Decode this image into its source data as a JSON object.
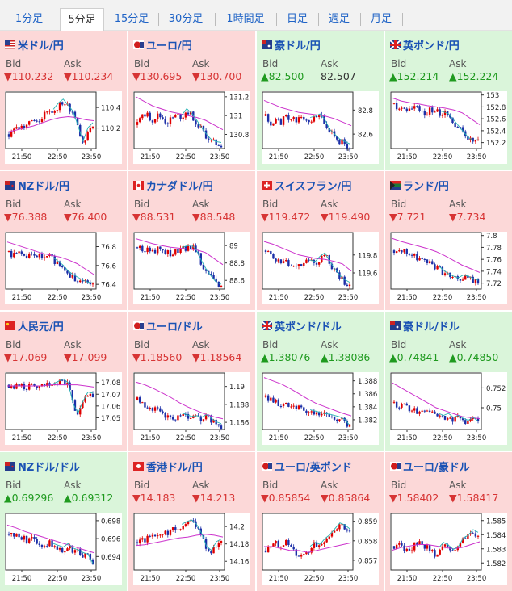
{
  "tabs": [
    {
      "label": "1分足",
      "selected": false
    },
    {
      "label": "5分足",
      "selected": true
    },
    {
      "label": "15分足",
      "selected": false
    },
    {
      "label": "30分足",
      "selected": false
    },
    {
      "label": "1時間足",
      "selected": false
    },
    {
      "label": "日足",
      "selected": false
    },
    {
      "label": "週足",
      "selected": false
    },
    {
      "label": "月足",
      "selected": false
    }
  ],
  "labels": {
    "bid": "Bid",
    "ask": "Ask"
  },
  "colors": {
    "down_bg": "#fcd8d8",
    "up_bg": "#daf5da",
    "candle_up": "#e00000",
    "candle_down": "#1c2fa8",
    "ma_line": "#cc33cc",
    "ma2_line": "#25b3b3"
  },
  "cells": [
    {
      "pair": "米ドル/円",
      "flag": "us",
      "dir": "down",
      "bid": "▼110.232",
      "ask": "▼110.234",
      "ask_dir": "down",
      "chart_data": {
        "type": "candlestick",
        "x_ticks": [
          "21:50",
          "22:50",
          "23:50"
        ],
        "y_ticks": [
          "110.4",
          "110.2"
        ],
        "ylim": [
          110.0,
          110.55
        ],
        "series_close": [
          110.14,
          110.18,
          110.2,
          110.22,
          110.24,
          110.28,
          110.26,
          110.32,
          110.38,
          110.36,
          110.42,
          110.46,
          110.4,
          110.34,
          110.2,
          110.05,
          110.18,
          110.23
        ],
        "trend": [
          110.16,
          110.18,
          110.2,
          110.22,
          110.25,
          110.28,
          110.3,
          110.31,
          110.3,
          110.28,
          110.27
        ]
      }
    },
    {
      "pair": "ユーロ/円",
      "flag": "eu",
      "dir": "down",
      "bid": "▼130.695",
      "ask": "▼130.700",
      "ask_dir": "down",
      "chart_data": {
        "type": "candlestick",
        "x_ticks": [
          "21:50",
          "22:50",
          "23:50"
        ],
        "y_ticks": [
          "131.2",
          "131",
          "130.8"
        ],
        "ylim": [
          130.65,
          131.25
        ],
        "series_close": [
          130.9,
          131.05,
          131.0,
          130.95,
          131.0,
          130.98,
          130.92,
          130.97,
          131.0,
          130.98,
          131.05,
          131.0,
          130.93,
          130.85,
          130.78,
          130.72,
          130.7,
          130.69
        ],
        "trend": [
          131.2,
          131.15,
          131.1,
          131.07,
          131.04,
          131.02,
          131.0,
          130.98,
          130.95,
          130.9,
          130.85
        ]
      }
    },
    {
      "pair": "豪ドル/円",
      "flag": "au",
      "dir": "up",
      "bid": "▲82.500",
      "ask": "82.507",
      "ask_dir": "none",
      "chart_data": {
        "type": "candlestick",
        "x_ticks": [
          "21:50",
          "22:50",
          "23:50"
        ],
        "y_ticks": [
          "82.8",
          "82.6"
        ],
        "ylim": [
          82.48,
          82.95
        ],
        "series_close": [
          82.75,
          82.68,
          82.72,
          82.7,
          82.74,
          82.73,
          82.71,
          82.76,
          82.74,
          82.72,
          82.73,
          82.75,
          82.7,
          82.62,
          82.58,
          82.54,
          82.52,
          82.5
        ],
        "trend": [
          82.88,
          82.85,
          82.82,
          82.8,
          82.78,
          82.77,
          82.76,
          82.75,
          82.73,
          82.7,
          82.67
        ]
      }
    },
    {
      "pair": "英ポンド/円",
      "flag": "gb",
      "dir": "up",
      "bid": "▲152.214",
      "ask": "▲152.224",
      "ask_dir": "up",
      "chart_data": {
        "type": "candlestick",
        "x_ticks": [
          "21:50",
          "22:50",
          "23:50"
        ],
        "y_ticks": [
          "153",
          "152.8",
          "152.6",
          "152.4",
          "152.2"
        ],
        "ylim": [
          152.1,
          153.05
        ],
        "series_close": [
          152.85,
          152.75,
          152.8,
          152.72,
          152.78,
          152.75,
          152.7,
          152.74,
          152.72,
          152.7,
          152.68,
          152.65,
          152.55,
          152.45,
          152.35,
          152.25,
          152.2,
          152.21
        ],
        "trend": [
          152.95,
          152.9,
          152.87,
          152.85,
          152.82,
          152.8,
          152.78,
          152.75,
          152.7,
          152.6,
          152.5
        ]
      }
    },
    {
      "pair": "NZドル/円",
      "flag": "nz",
      "dir": "down",
      "bid": "▼76.388",
      "ask": "▼76.400",
      "ask_dir": "down",
      "chart_data": {
        "type": "candlestick",
        "x_ticks": [
          "21:50",
          "22:50",
          "23:50"
        ],
        "y_ticks": [
          "76.8",
          "76.6",
          "76.4"
        ],
        "ylim": [
          76.35,
          76.95
        ],
        "series_close": [
          76.75,
          76.7,
          76.72,
          76.68,
          76.7,
          76.71,
          76.69,
          76.67,
          76.7,
          76.66,
          76.62,
          76.58,
          76.52,
          76.48,
          76.45,
          76.42,
          76.4,
          76.39
        ],
        "trend": [
          76.85,
          76.82,
          76.79,
          76.76,
          76.73,
          76.71,
          76.69,
          76.66,
          76.62,
          76.56,
          76.5
        ]
      }
    },
    {
      "pair": "カナダドル/円",
      "flag": "ca",
      "dir": "down",
      "bid": "▼88.531",
      "ask": "▼88.548",
      "ask_dir": "down",
      "chart_data": {
        "type": "candlestick",
        "x_ticks": [
          "21:50",
          "22:50",
          "23:50"
        ],
        "y_ticks": [
          "89",
          "88.8",
          "88.6"
        ],
        "ylim": [
          88.5,
          89.15
        ],
        "series_close": [
          88.98,
          88.95,
          88.97,
          88.93,
          88.96,
          88.95,
          88.92,
          88.9,
          88.93,
          88.95,
          88.97,
          88.98,
          88.92,
          88.8,
          88.7,
          88.62,
          88.55,
          88.53
        ],
        "trend": [
          89.08,
          89.05,
          89.02,
          89.0,
          88.98,
          88.97,
          88.96,
          88.95,
          88.92,
          88.85,
          88.78
        ]
      }
    },
    {
      "pair": "スイスフラン/円",
      "flag": "ch",
      "dir": "down",
      "bid": "▼119.472",
      "ask": "▼119.490",
      "ask_dir": "down",
      "chart_data": {
        "type": "candlestick",
        "x_ticks": [
          "21:50",
          "22:50",
          "23:50"
        ],
        "y_ticks": [
          "119.8",
          "119.6"
        ],
        "ylim": [
          119.42,
          120.05
        ],
        "series_close": [
          119.85,
          119.8,
          119.75,
          119.7,
          119.72,
          119.68,
          119.64,
          119.7,
          119.74,
          119.72,
          119.7,
          119.76,
          119.8,
          119.7,
          119.62,
          119.55,
          119.5,
          119.47
        ],
        "trend": [
          119.95,
          119.92,
          119.88,
          119.84,
          119.8,
          119.78,
          119.76,
          119.75,
          119.73,
          119.7,
          119.62
        ]
      }
    },
    {
      "pair": "ランド/円",
      "flag": "za",
      "dir": "down",
      "bid": "▼7.721",
      "ask": "▼7.734",
      "ask_dir": "down",
      "chart_data": {
        "type": "candlestick",
        "x_ticks": [
          "21:50",
          "22:50",
          "23:50"
        ],
        "y_ticks": [
          "7.8",
          "7.78",
          "7.76",
          "7.74",
          "7.72"
        ],
        "ylim": [
          7.71,
          7.805
        ],
        "series_close": [
          7.775,
          7.77,
          7.772,
          7.768,
          7.765,
          7.762,
          7.758,
          7.755,
          7.75,
          7.745,
          7.738,
          7.732,
          7.728,
          7.725,
          7.73,
          7.728,
          7.724,
          7.721
        ],
        "trend": [
          7.795,
          7.79,
          7.786,
          7.782,
          7.778,
          7.773,
          7.766,
          7.758,
          7.75,
          7.744,
          7.738
        ]
      }
    },
    {
      "pair": "人民元/円",
      "flag": "cn",
      "dir": "down",
      "bid": "▼17.069",
      "ask": "▼17.099",
      "ask_dir": "down",
      "chart_data": {
        "type": "candlestick",
        "x_ticks": [
          "21:50",
          "22:50",
          "23:50"
        ],
        "y_ticks": [
          "17.08",
          "17.07",
          "17.06",
          "17.05"
        ],
        "ylim": [
          17.04,
          17.088
        ],
        "series_close": [
          17.078,
          17.076,
          17.077,
          17.075,
          17.076,
          17.077,
          17.076,
          17.077,
          17.078,
          17.077,
          17.079,
          17.081,
          17.078,
          17.06,
          17.052,
          17.062,
          17.07,
          17.069
        ],
        "trend": [
          17.077,
          17.077,
          17.077,
          17.077,
          17.077,
          17.078,
          17.078,
          17.078,
          17.078,
          17.077,
          17.076
        ]
      }
    },
    {
      "pair": "ユーロ/ドル",
      "flag": "eu",
      "dir": "down",
      "bid": "▼1.18560",
      "ask": "▼1.18564",
      "ask_dir": "down",
      "chart_data": {
        "type": "candlestick",
        "x_ticks": [
          "21:50",
          "22:50",
          "23:50"
        ],
        "y_ticks": [
          "1.19",
          "1.188",
          "1.186"
        ],
        "ylim": [
          1.1852,
          1.1915
        ],
        "series_close": [
          1.1885,
          1.1882,
          1.1878,
          1.1875,
          1.1873,
          1.187,
          1.1868,
          1.1866,
          1.1865,
          1.1868,
          1.1866,
          1.1864,
          1.1865,
          1.1863,
          1.1866,
          1.1862,
          1.1858,
          1.1856
        ],
        "trend": [
          1.1905,
          1.1902,
          1.1898,
          1.1893,
          1.1888,
          1.1882,
          1.1877,
          1.1873,
          1.1869,
          1.1866,
          1.1864
        ]
      }
    },
    {
      "pair": "英ポンド/ドル",
      "flag": "gb",
      "dir": "up",
      "bid": "▲1.38076",
      "ask": "▲1.38086",
      "ask_dir": "up",
      "chart_data": {
        "type": "candlestick",
        "x_ticks": [
          "21:50",
          "22:50",
          "23:50"
        ],
        "y_ticks": [
          "1.388",
          "1.386",
          "1.384",
          "1.382"
        ],
        "ylim": [
          1.3805,
          1.3892
        ],
        "series_close": [
          1.3855,
          1.385,
          1.3847,
          1.3845,
          1.3842,
          1.384,
          1.3838,
          1.3836,
          1.3834,
          1.3832,
          1.383,
          1.3828,
          1.3826,
          1.3825,
          1.3823,
          1.3821,
          1.3817,
          1.3808
        ],
        "trend": [
          1.3885,
          1.388,
          1.3875,
          1.3868,
          1.386,
          1.3852,
          1.3845,
          1.384,
          1.3835,
          1.383,
          1.3826
        ]
      }
    },
    {
      "pair": "豪ドル/ドル",
      "flag": "au",
      "dir": "up",
      "bid": "▲0.74841",
      "ask": "▲0.74850",
      "ask_dir": "up",
      "chart_data": {
        "type": "candlestick",
        "x_ticks": [
          "21:50",
          "22:50",
          "23:50"
        ],
        "y_ticks": [
          "0.752",
          "0.75"
        ],
        "ylim": [
          0.7478,
          0.7535
        ],
        "series_close": [
          0.7505,
          0.7502,
          0.7504,
          0.75,
          0.7497,
          0.7495,
          0.7498,
          0.7496,
          0.7494,
          0.7492,
          0.749,
          0.7492,
          0.7488,
          0.749,
          0.7487,
          0.7485,
          0.7488,
          0.7484
        ],
        "trend": [
          0.7525,
          0.752,
          0.7515,
          0.751,
          0.7505,
          0.75,
          0.7497,
          0.7494,
          0.7491,
          0.749,
          0.7489
        ]
      }
    },
    {
      "pair": "NZドル/ドル",
      "flag": "nz",
      "dir": "up",
      "bid": "▲0.69296",
      "ask": "▲0.69312",
      "ask_dir": "up",
      "chart_data": {
        "type": "candlestick",
        "x_ticks": [
          "21:50",
          "22:50",
          "23:50"
        ],
        "y_ticks": [
          "0.698",
          "0.696",
          "0.694"
        ],
        "ylim": [
          0.6925,
          0.6988
        ],
        "series_close": [
          0.6965,
          0.6962,
          0.6964,
          0.696,
          0.6957,
          0.6959,
          0.6955,
          0.6953,
          0.6956,
          0.6952,
          0.695,
          0.6948,
          0.6952,
          0.6947,
          0.6945,
          0.6942,
          0.694,
          0.693
        ],
        "trend": [
          0.6975,
          0.6972,
          0.6968,
          0.6965,
          0.6962,
          0.6959,
          0.6956,
          0.6953,
          0.695,
          0.6947,
          0.6944
        ]
      }
    },
    {
      "pair": "香港ドル/円",
      "flag": "hk",
      "dir": "down",
      "bid": "▼14.183",
      "ask": "▼14.213",
      "ask_dir": "down",
      "chart_data": {
        "type": "candlestick",
        "x_ticks": [
          "21:50",
          "22:50",
          "23:50"
        ],
        "y_ticks": [
          "14.2",
          "14.18",
          "14.16"
        ],
        "ylim": [
          14.15,
          14.215
        ],
        "series_close": [
          14.182,
          14.184,
          14.186,
          14.188,
          14.186,
          14.19,
          14.192,
          14.195,
          14.198,
          14.2,
          14.203,
          14.205,
          14.2,
          14.19,
          14.175,
          14.17,
          14.18,
          14.183
        ],
        "trend": [
          14.178,
          14.179,
          14.181,
          14.183,
          14.185,
          14.187,
          14.188,
          14.19,
          14.191,
          14.19,
          14.188
        ]
      }
    },
    {
      "pair": "ユーロ/英ポンド",
      "flag": "eu",
      "dir": "down",
      "bid": "▼0.85854",
      "ask": "▼0.85864",
      "ask_dir": "down",
      "chart_data": {
        "type": "candlestick",
        "x_ticks": [
          "21:50",
          "22:50",
          "23:50"
        ],
        "y_ticks": [
          "0.859",
          "0.858",
          "0.857"
        ],
        "ylim": [
          0.8565,
          0.8594
        ],
        "series_close": [
          0.8575,
          0.8578,
          0.858,
          0.8576,
          0.8579,
          0.8577,
          0.8574,
          0.8572,
          0.8573,
          0.8576,
          0.8578,
          0.8577,
          0.858,
          0.8582,
          0.8585,
          0.8588,
          0.8587,
          0.8585
        ],
        "trend": [
          0.8577,
          0.8577,
          0.8576,
          0.8575,
          0.8575,
          0.8574,
          0.8575,
          0.8576,
          0.8577,
          0.8578,
          0.8579
        ]
      }
    },
    {
      "pair": "ユーロ/豪ドル",
      "flag": "eu",
      "dir": "down",
      "bid": "▼1.58402",
      "ask": "▼1.58417",
      "ask_dir": "down",
      "chart_data": {
        "type": "candlestick",
        "x_ticks": [
          "21:50",
          "22:50",
          "23:50"
        ],
        "y_ticks": [
          "1.585",
          "1.584",
          "1.583",
          "1.582"
        ],
        "ylim": [
          1.5815,
          1.5855
        ],
        "series_close": [
          1.5832,
          1.5834,
          1.583,
          1.5828,
          1.5832,
          1.5835,
          1.5833,
          1.583,
          1.5826,
          1.5829,
          1.5833,
          1.5831,
          1.5828,
          1.583,
          1.5836,
          1.5838,
          1.5842,
          1.584
        ],
        "trend": [
          1.5829,
          1.5831,
          1.5832,
          1.5833,
          1.5833,
          1.5832,
          1.5831,
          1.583,
          1.5831,
          1.5833,
          1.5835
        ]
      }
    }
  ]
}
